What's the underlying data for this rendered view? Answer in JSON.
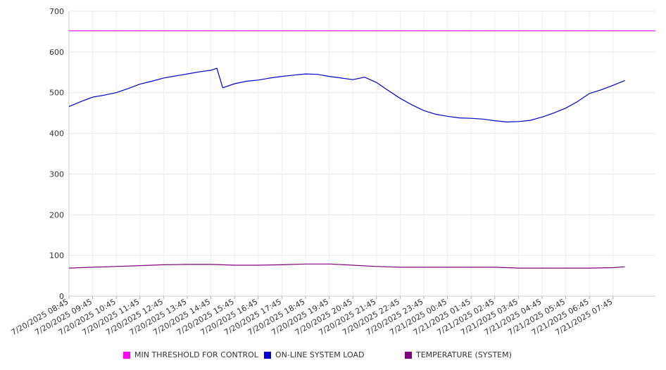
{
  "chart_data": {
    "type": "line",
    "title": "",
    "xlabel": "",
    "ylabel": "",
    "ylim": [
      0,
      700
    ],
    "yticks": [
      "0",
      "100",
      "200",
      "300",
      "400",
      "500",
      "600",
      "700"
    ],
    "xticks": [
      "7/20/2025 08:45",
      "7/20/2025 09:45",
      "7/20/2025 10:45",
      "7/20/2025 11:45",
      "7/20/2025 12:45",
      "7/20/2025 13:45",
      "7/20/2025 14:45",
      "7/20/2025 15:45",
      "7/20/2025 16:45",
      "7/20/2025 17:45",
      "7/20/2025 18:45",
      "7/20/2025 19:45",
      "7/20/2025 20:45",
      "7/20/2025 21:45",
      "7/20/2025 22:45",
      "7/20/2025 23:45",
      "7/21/2025 00:45",
      "7/21/2025 01:45",
      "7/21/2025 02:45",
      "7/21/2025 03:45",
      "7/21/2025 04:45",
      "7/21/2025 05:45",
      "7/21/2025 06:45",
      "7/21/2025 07:45"
    ],
    "grid": true,
    "legend_position": "bottom",
    "series": [
      {
        "name": "MIN THRESHOLD FOR CONTROL",
        "color": "#ff00ff",
        "x": [
          "7/20/2025 08:45",
          "7/21/2025 07:45"
        ],
        "values": [
          652,
          652
        ]
      },
      {
        "name": "ON-LINE SYSTEM LOAD",
        "color": "#0000cc",
        "x": [
          "7/20/2025 08:45",
          "7/20/2025 09:15",
          "7/20/2025 09:45",
          "7/20/2025 10:15",
          "7/20/2025 10:45",
          "7/20/2025 11:15",
          "7/20/2025 11:45",
          "7/20/2025 12:15",
          "7/20/2025 12:45",
          "7/20/2025 13:15",
          "7/20/2025 13:45",
          "7/20/2025 14:15",
          "7/20/2025 14:45",
          "7/20/2025 15:00",
          "7/20/2025 15:15",
          "7/20/2025 15:45",
          "7/20/2025 16:15",
          "7/20/2025 16:45",
          "7/20/2025 17:15",
          "7/20/2025 17:45",
          "7/20/2025 18:15",
          "7/20/2025 18:45",
          "7/20/2025 19:15",
          "7/20/2025 19:45",
          "7/20/2025 20:15",
          "7/20/2025 20:45",
          "7/20/2025 21:15",
          "7/20/2025 21:45",
          "7/20/2025 22:15",
          "7/20/2025 22:45",
          "7/20/2025 23:15",
          "7/20/2025 23:45",
          "7/21/2025 00:15",
          "7/21/2025 00:45",
          "7/21/2025 01:15",
          "7/21/2025 01:45",
          "7/21/2025 02:15",
          "7/21/2025 02:45",
          "7/21/2025 03:15",
          "7/21/2025 03:45",
          "7/21/2025 04:15",
          "7/21/2025 04:45",
          "7/21/2025 05:15",
          "7/21/2025 05:45",
          "7/21/2025 06:15",
          "7/21/2025 06:45",
          "7/21/2025 07:15",
          "7/21/2025 07:45",
          "7/21/2025 08:15"
        ],
        "values": [
          466,
          478,
          489,
          494,
          500,
          510,
          521,
          528,
          536,
          541,
          546,
          551,
          555,
          560,
          512,
          522,
          528,
          531,
          536,
          540,
          543,
          546,
          545,
          540,
          536,
          532,
          538,
          525,
          505,
          486,
          470,
          456,
          447,
          442,
          438,
          437,
          435,
          431,
          428,
          429,
          432,
          440,
          450,
          462,
          478,
          498,
          507,
          518,
          530
        ]
      },
      {
        "name": "TEMPERATURE (SYSTEM)",
        "color": "#800080",
        "x": [
          "7/20/2025 08:45",
          "7/20/2025 09:45",
          "7/20/2025 10:45",
          "7/20/2025 11:45",
          "7/20/2025 12:45",
          "7/20/2025 13:45",
          "7/20/2025 14:45",
          "7/20/2025 15:45",
          "7/20/2025 16:45",
          "7/20/2025 17:45",
          "7/20/2025 18:45",
          "7/20/2025 19:45",
          "7/20/2025 20:45",
          "7/20/2025 21:45",
          "7/20/2025 22:45",
          "7/20/2025 23:45",
          "7/21/2025 00:45",
          "7/21/2025 01:45",
          "7/21/2025 02:45",
          "7/21/2025 03:45",
          "7/21/2025 04:45",
          "7/21/2025 05:45",
          "7/21/2025 06:45",
          "7/21/2025 07:45",
          "7/21/2025 08:15"
        ],
        "values": [
          69,
          71,
          73,
          75,
          77,
          78,
          78,
          76,
          76,
          77,
          79,
          79,
          76,
          73,
          71,
          71,
          71,
          71,
          71,
          69,
          69,
          69,
          69,
          70,
          72
        ]
      }
    ]
  }
}
